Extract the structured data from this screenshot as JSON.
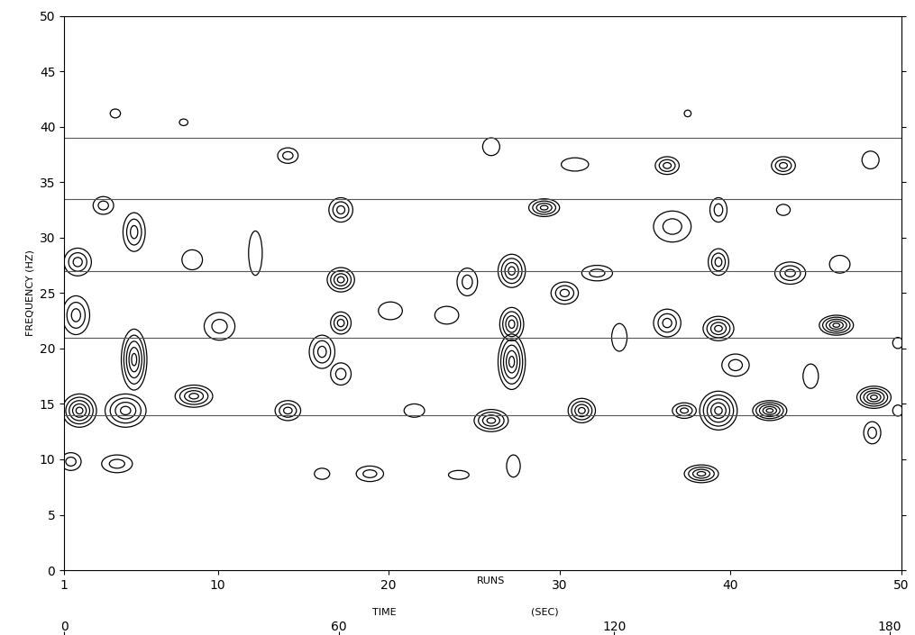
{
  "chart_data": {
    "type": "contour",
    "xlabel": "RUNS",
    "ylabel": "FREQUENCY (HZ)",
    "x2label": "TIME",
    "x2unit": "(SEC)",
    "xlim": [
      1,
      50
    ],
    "xticks": [
      1,
      10,
      20,
      30,
      40,
      50
    ],
    "ylim": [
      0,
      50
    ],
    "yticks": [
      0,
      5,
      10,
      15,
      20,
      25,
      30,
      35,
      40,
      45,
      50
    ],
    "x2lim": [
      0,
      182.6
    ],
    "x2ticks": [
      0,
      60,
      120,
      180
    ],
    "hlines": [
      14,
      21,
      27,
      33.5,
      39
    ],
    "color": "#000000",
    "peaks": [
      {
        "x": 1.9,
        "y": 14.4,
        "levels": 5,
        "width": 2.0,
        "height": 3.0
      },
      {
        "x": 1.8,
        "y": 27.8,
        "levels": 3,
        "width": 1.6,
        "height": 2.5
      },
      {
        "x": 1.7,
        "y": 23.0,
        "levels": 3,
        "width": 1.6,
        "height": 3.5
      },
      {
        "x": 1.4,
        "y": 9.8,
        "levels": 2,
        "width": 1.2,
        "height": 1.6
      },
      {
        "x": 4.6,
        "y": 14.4,
        "levels": 4,
        "width": 2.4,
        "height": 3.0
      },
      {
        "x": 5.1,
        "y": 19.0,
        "levels": 5,
        "width": 1.5,
        "height": 5.5
      },
      {
        "x": 5.1,
        "y": 30.5,
        "levels": 3,
        "width": 1.3,
        "height": 3.5
      },
      {
        "x": 4.1,
        "y": 9.6,
        "levels": 2,
        "width": 1.8,
        "height": 1.6
      },
      {
        "x": 8.6,
        "y": 15.7,
        "levels": 4,
        "width": 2.2,
        "height": 2.0
      },
      {
        "x": 4.0,
        "y": 41.2,
        "levels": 1,
        "width": 0.6,
        "height": 0.8
      },
      {
        "x": 3.3,
        "y": 32.9,
        "levels": 2,
        "width": 1.2,
        "height": 1.6
      },
      {
        "x": 10.1,
        "y": 22.0,
        "levels": 2,
        "width": 1.8,
        "height": 2.5
      },
      {
        "x": 14.1,
        "y": 37.4,
        "levels": 2,
        "width": 1.2,
        "height": 1.4
      },
      {
        "x": 14.1,
        "y": 14.4,
        "levels": 3,
        "width": 1.5,
        "height": 1.8
      },
      {
        "x": 17.2,
        "y": 26.2,
        "levels": 4,
        "width": 1.6,
        "height": 2.2
      },
      {
        "x": 17.2,
        "y": 32.5,
        "levels": 3,
        "width": 1.4,
        "height": 2.2
      },
      {
        "x": 17.2,
        "y": 22.3,
        "levels": 3,
        "width": 1.2,
        "height": 2.0
      },
      {
        "x": 16.1,
        "y": 19.7,
        "levels": 3,
        "width": 1.5,
        "height": 3.0
      },
      {
        "x": 17.2,
        "y": 17.7,
        "levels": 2,
        "width": 1.2,
        "height": 2.0
      },
      {
        "x": 18.9,
        "y": 8.7,
        "levels": 2,
        "width": 1.6,
        "height": 1.4
      },
      {
        "x": 16.1,
        "y": 8.7,
        "levels": 1,
        "width": 0.9,
        "height": 1.0
      },
      {
        "x": 12.2,
        "y": 28.6,
        "levels": 1,
        "width": 0.8,
        "height": 4.0
      },
      {
        "x": 8.5,
        "y": 28.0,
        "levels": 1,
        "width": 1.2,
        "height": 1.8
      },
      {
        "x": 26.0,
        "y": 13.5,
        "levels": 4,
        "width": 2.0,
        "height": 2.0
      },
      {
        "x": 27.2,
        "y": 18.8,
        "levels": 5,
        "width": 1.6,
        "height": 5.0
      },
      {
        "x": 27.2,
        "y": 22.2,
        "levels": 4,
        "width": 1.4,
        "height": 3.0
      },
      {
        "x": 27.2,
        "y": 27.0,
        "levels": 4,
        "width": 1.6,
        "height": 3.0
      },
      {
        "x": 26.0,
        "y": 38.2,
        "levels": 1,
        "width": 1.0,
        "height": 1.6
      },
      {
        "x": 29.1,
        "y": 32.7,
        "levels": 4,
        "width": 1.8,
        "height": 1.6
      },
      {
        "x": 30.3,
        "y": 25.0,
        "levels": 3,
        "width": 1.6,
        "height": 2.0
      },
      {
        "x": 31.3,
        "y": 14.4,
        "levels": 4,
        "width": 1.6,
        "height": 2.2
      },
      {
        "x": 32.2,
        "y": 26.8,
        "levels": 2,
        "width": 1.8,
        "height": 1.4
      },
      {
        "x": 27.3,
        "y": 9.4,
        "levels": 1,
        "width": 0.8,
        "height": 2.0
      },
      {
        "x": 21.5,
        "y": 14.4,
        "levels": 1,
        "width": 1.2,
        "height": 1.2
      },
      {
        "x": 23.4,
        "y": 23.0,
        "levels": 1,
        "width": 1.4,
        "height": 1.6
      },
      {
        "x": 24.1,
        "y": 8.6,
        "levels": 1,
        "width": 1.2,
        "height": 0.8
      },
      {
        "x": 33.5,
        "y": 21.0,
        "levels": 1,
        "width": 0.9,
        "height": 2.5
      },
      {
        "x": 36.3,
        "y": 36.5,
        "levels": 3,
        "width": 1.4,
        "height": 1.6
      },
      {
        "x": 36.3,
        "y": 22.3,
        "levels": 3,
        "width": 1.6,
        "height": 2.5
      },
      {
        "x": 37.3,
        "y": 14.4,
        "levels": 3,
        "width": 1.4,
        "height": 1.4
      },
      {
        "x": 38.3,
        "y": 8.7,
        "levels": 4,
        "width": 2.0,
        "height": 1.6
      },
      {
        "x": 39.3,
        "y": 14.4,
        "levels": 5,
        "width": 2.2,
        "height": 3.5
      },
      {
        "x": 39.3,
        "y": 21.8,
        "levels": 4,
        "width": 1.8,
        "height": 2.2
      },
      {
        "x": 39.3,
        "y": 27.8,
        "levels": 3,
        "width": 1.2,
        "height": 2.4
      },
      {
        "x": 39.3,
        "y": 32.5,
        "levels": 2,
        "width": 1.0,
        "height": 2.2
      },
      {
        "x": 36.6,
        "y": 31.0,
        "levels": 2,
        "width": 2.2,
        "height": 2.8
      },
      {
        "x": 42.3,
        "y": 14.4,
        "levels": 5,
        "width": 2.0,
        "height": 1.8
      },
      {
        "x": 43.5,
        "y": 26.8,
        "levels": 3,
        "width": 1.8,
        "height": 2.0
      },
      {
        "x": 43.1,
        "y": 36.5,
        "levels": 3,
        "width": 1.4,
        "height": 1.6
      },
      {
        "x": 46.2,
        "y": 22.1,
        "levels": 5,
        "width": 2.0,
        "height": 1.8
      },
      {
        "x": 48.4,
        "y": 15.6,
        "levels": 5,
        "width": 2.0,
        "height": 2.0
      },
      {
        "x": 48.3,
        "y": 12.4,
        "levels": 2,
        "width": 1.0,
        "height": 2.0
      },
      {
        "x": 48.2,
        "y": 37.0,
        "levels": 1,
        "width": 1.0,
        "height": 1.6
      },
      {
        "x": 44.7,
        "y": 17.5,
        "levels": 1,
        "width": 0.9,
        "height": 2.2
      },
      {
        "x": 30.9,
        "y": 36.6,
        "levels": 1,
        "width": 1.6,
        "height": 1.2
      },
      {
        "x": 40.3,
        "y": 18.5,
        "levels": 2,
        "width": 1.6,
        "height": 2.0
      },
      {
        "x": 46.4,
        "y": 27.6,
        "levels": 1,
        "width": 1.2,
        "height": 1.6
      },
      {
        "x": 20.1,
        "y": 23.4,
        "levels": 1,
        "width": 1.4,
        "height": 1.6
      },
      {
        "x": 24.6,
        "y": 26.0,
        "levels": 2,
        "width": 1.2,
        "height": 2.5
      },
      {
        "x": 49.8,
        "y": 20.5,
        "levels": 1,
        "width": 0.6,
        "height": 1.0
      },
      {
        "x": 49.8,
        "y": 14.4,
        "levels": 1,
        "width": 0.6,
        "height": 1.0
      },
      {
        "x": 43.1,
        "y": 32.5,
        "levels": 1,
        "width": 0.8,
        "height": 1.0
      },
      {
        "x": 8.0,
        "y": 40.4,
        "levels": 1,
        "width": 0.5,
        "height": 0.6
      },
      {
        "x": 37.5,
        "y": 41.2,
        "levels": 1,
        "width": 0.4,
        "height": 0.6
      }
    ]
  }
}
